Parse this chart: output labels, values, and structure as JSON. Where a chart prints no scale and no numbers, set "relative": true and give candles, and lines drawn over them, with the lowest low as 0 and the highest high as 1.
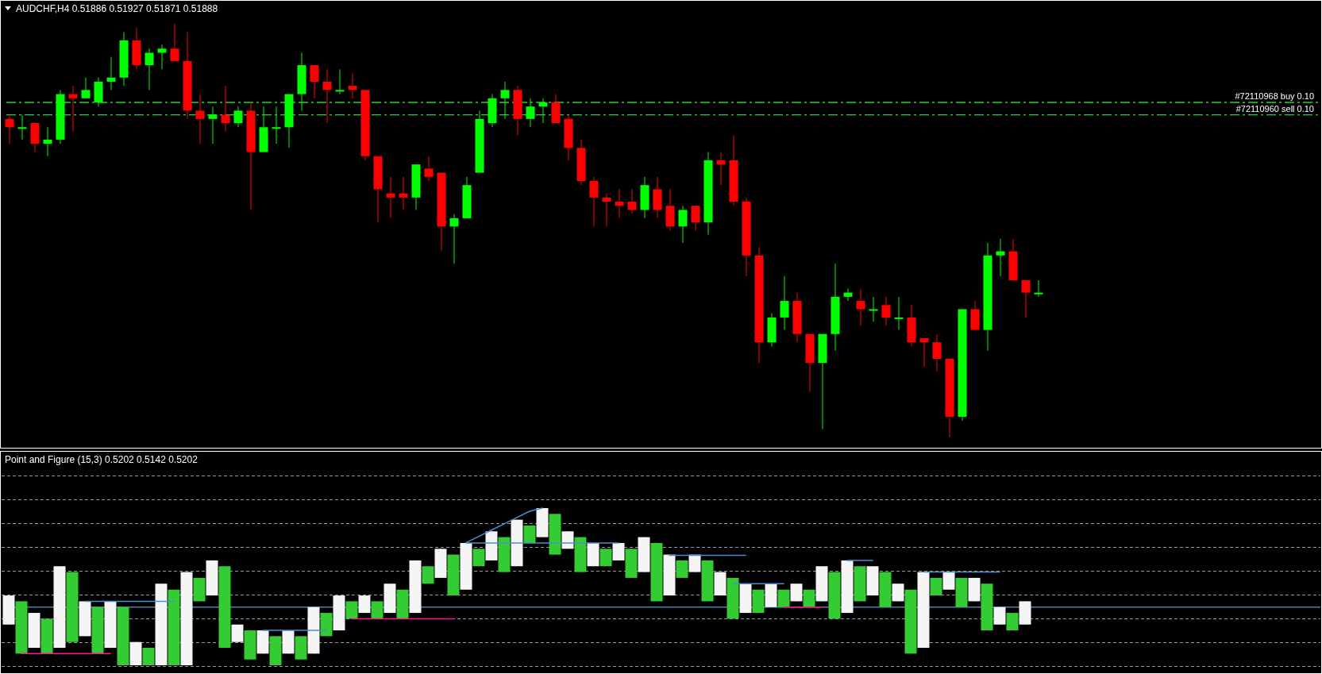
{
  "chart_data": [
    {
      "type": "candlestick",
      "title": "AUDCHF,H4  0.51886 0.51927 0.51871 0.51888",
      "relative": true,
      "categories": [
        null,
        null,
        null,
        null,
        null,
        null,
        null,
        null,
        null,
        null,
        null,
        null,
        null,
        null,
        null,
        null,
        null,
        null,
        null,
        null,
        null,
        null,
        null,
        null,
        null,
        null,
        null,
        null,
        null,
        null,
        null,
        null,
        null,
        null,
        null,
        null,
        null,
        null,
        null,
        null,
        null,
        null,
        null,
        null,
        null,
        null,
        null,
        null,
        null,
        null,
        null,
        null,
        null,
        null,
        null,
        null,
        null,
        null,
        null,
        null,
        null,
        null,
        null,
        null,
        null,
        null,
        null,
        null,
        null,
        null,
        null,
        null,
        null,
        null,
        null,
        null,
        null,
        null,
        null,
        null,
        null,
        null
      ],
      "ohlc": [
        [
          0.77,
          0.78,
          0.71,
          0.75
        ],
        [
          0.75,
          0.78,
          0.72,
          0.75
        ],
        [
          0.76,
          0.76,
          0.69,
          0.71
        ],
        [
          0.71,
          0.75,
          0.68,
          0.72
        ],
        [
          0.72,
          0.84,
          0.71,
          0.83
        ],
        [
          0.83,
          0.85,
          0.74,
          0.82
        ],
        [
          0.82,
          0.87,
          0.82,
          0.84
        ],
        [
          0.81,
          0.87,
          0.8,
          0.86
        ],
        [
          0.86,
          0.92,
          0.84,
          0.87
        ],
        [
          0.87,
          0.98,
          0.85,
          0.96
        ],
        [
          0.96,
          0.99,
          0.89,
          0.9
        ],
        [
          0.9,
          0.94,
          0.84,
          0.93
        ],
        [
          0.93,
          0.95,
          0.89,
          0.94
        ],
        [
          0.94,
          1,
          0.91,
          0.91
        ],
        [
          0.91,
          0.98,
          0.77,
          0.79
        ],
        [
          0.79,
          0.83,
          0.71,
          0.77
        ],
        [
          0.77,
          0.8,
          0.71,
          0.78
        ],
        [
          0.78,
          0.85,
          0.74,
          0.76
        ],
        [
          0.76,
          0.8,
          0.75,
          0.79
        ],
        [
          0.79,
          0.81,
          0.55,
          0.69
        ],
        [
          0.69,
          0.8,
          0.69,
          0.75
        ],
        [
          0.75,
          0.8,
          0.71,
          0.75
        ],
        [
          0.75,
          0.83,
          0.7,
          0.83
        ],
        [
          0.83,
          0.93,
          0.79,
          0.9
        ],
        [
          0.9,
          0.9,
          0.82,
          0.86
        ],
        [
          0.86,
          0.89,
          0.76,
          0.84
        ],
        [
          0.84,
          0.89,
          0.83,
          0.84
        ],
        [
          0.85,
          0.88,
          0.82,
          0.84
        ],
        [
          0.84,
          0.84,
          0.67,
          0.68
        ],
        [
          0.68,
          0.68,
          0.52,
          0.6
        ],
        [
          0.59,
          0.63,
          0.53,
          0.58
        ],
        [
          0.59,
          0.63,
          0.55,
          0.58
        ],
        [
          0.58,
          0.66,
          0.55,
          0.66
        ],
        [
          0.65,
          0.68,
          0.62,
          0.63
        ],
        [
          0.64,
          0.64,
          0.45,
          0.51
        ],
        [
          0.51,
          0.54,
          0.42,
          0.53
        ],
        [
          0.53,
          0.63,
          0.53,
          0.61
        ],
        [
          0.64,
          0.79,
          0.64,
          0.77
        ],
        [
          0.76,
          0.83,
          0.75,
          0.82
        ],
        [
          0.82,
          0.86,
          0.77,
          0.84
        ],
        [
          0.84,
          0.85,
          0.73,
          0.77
        ],
        [
          0.77,
          0.82,
          0.75,
          0.8
        ],
        [
          0.8,
          0.82,
          0.76,
          0.81
        ],
        [
          0.81,
          0.83,
          0.76,
          0.76
        ],
        [
          0.77,
          0.78,
          0.67,
          0.7
        ],
        [
          0.7,
          0.72,
          0.61,
          0.62
        ],
        [
          0.62,
          0.63,
          0.51,
          0.58
        ],
        [
          0.58,
          0.59,
          0.51,
          0.57
        ],
        [
          0.57,
          0.6,
          0.53,
          0.56
        ],
        [
          0.57,
          0.6,
          0.54,
          0.55
        ],
        [
          0.55,
          0.63,
          0.53,
          0.61
        ],
        [
          0.6,
          0.63,
          0.53,
          0.55
        ],
        [
          0.56,
          0.6,
          0.5,
          0.51
        ],
        [
          0.51,
          0.56,
          0.47,
          0.55
        ],
        [
          0.56,
          0.56,
          0.5,
          0.52
        ],
        [
          0.52,
          0.69,
          0.49,
          0.67
        ],
        [
          0.67,
          0.69,
          0.61,
          0.66
        ],
        [
          0.67,
          0.73,
          0.56,
          0.57
        ],
        [
          0.57,
          0.58,
          0.39,
          0.44
        ],
        [
          0.44,
          0.46,
          0.18,
          0.23
        ],
        [
          0.23,
          0.3,
          0.22,
          0.29
        ],
        [
          0.29,
          0.39,
          0.26,
          0.33
        ],
        [
          0.33,
          0.35,
          0.23,
          0.25
        ],
        [
          0.25,
          0.25,
          0.11,
          0.18
        ],
        [
          0.18,
          0.25,
          0.02,
          0.25
        ],
        [
          0.25,
          0.42,
          0.21,
          0.34
        ],
        [
          0.34,
          0.36,
          0.33,
          0.35
        ],
        [
          0.33,
          0.36,
          0.27,
          0.31
        ],
        [
          0.31,
          0.34,
          0.28,
          0.31
        ],
        [
          0.32,
          0.34,
          0.27,
          0.29
        ],
        [
          0.29,
          0.34,
          0.26,
          0.29
        ],
        [
          0.29,
          0.32,
          0.22,
          0.23
        ],
        [
          0.24,
          0.24,
          0.17,
          0.23
        ],
        [
          0.23,
          0.25,
          0.16,
          0.19
        ],
        [
          0.19,
          0.19,
          0,
          0.05
        ],
        [
          0.05,
          0.31,
          0.04,
          0.31
        ],
        [
          0.31,
          0.33,
          0.26,
          0.26
        ],
        [
          0.26,
          0.47,
          0.21,
          0.44
        ],
        [
          0.44,
          0.48,
          0.39,
          0.45
        ],
        [
          0.45,
          0.48,
          0.38,
          0.38
        ],
        [
          0.38,
          0.38,
          0.29,
          0.35
        ],
        [
          0.35,
          0.38,
          0.34,
          0.35
        ]
      ],
      "ref_lines": [
        {
          "axis": "y",
          "value": 0.81,
          "label": "#72110968 buy 0.10",
          "color": "#32cd32",
          "line_style": "dashed"
        },
        {
          "axis": "y",
          "value": 0.78,
          "label": "#72110960 sell 0.10",
          "color": "#32cd32",
          "line_style": "dashed"
        }
      ]
    },
    {
      "type": "candlestick",
      "title": "Point and Figure (15,3) 0.5202 0.5142 0.5202",
      "relative": true,
      "grid": true,
      "categories": [
        null,
        null,
        null,
        null,
        null,
        null,
        null,
        null,
        null,
        null,
        null,
        null,
        null,
        null,
        null,
        null,
        null,
        null,
        null,
        null,
        null,
        null,
        null,
        null,
        null,
        null,
        null,
        null,
        null,
        null,
        null,
        null,
        null,
        null,
        null,
        null,
        null,
        null,
        null,
        null,
        null,
        null,
        null,
        null,
        null,
        null,
        null,
        null,
        null,
        null,
        null,
        null,
        null,
        null,
        null,
        null,
        null,
        null,
        null,
        null,
        null,
        null,
        null,
        null,
        null,
        null,
        null,
        null,
        null,
        null,
        null,
        null,
        null,
        null,
        null,
        null,
        null,
        null,
        null,
        null,
        null
      ],
      "ohlc": [
        [
          0.259,
          0.444,
          0.259,
          0.444
        ],
        [
          0.407,
          0.407,
          0.074,
          0.074
        ],
        [
          0.111,
          0.333,
          0.111,
          0.333
        ],
        [
          0.296,
          0.296,
          0.074,
          0.074
        ],
        [
          0.111,
          0.63,
          0.111,
          0.63
        ],
        [
          0.593,
          0.593,
          0.148,
          0.148
        ],
        [
          0.185,
          0.407,
          0.185,
          0.407
        ],
        [
          0.37,
          0.37,
          0.074,
          0.074
        ],
        [
          0.111,
          0.407,
          0.111,
          0.407
        ],
        [
          0.37,
          0.37,
          0,
          0
        ],
        [
          0,
          0.148,
          0,
          0.148
        ],
        [
          0.111,
          0.111,
          0,
          0
        ],
        [
          0,
          0.519,
          0,
          0.519
        ],
        [
          0.481,
          0.481,
          0,
          0
        ],
        [
          0,
          0.593,
          0,
          0.593
        ],
        [
          0.556,
          0.556,
          0.407,
          0.407
        ],
        [
          0.444,
          0.667,
          0.444,
          0.667
        ],
        [
          0.63,
          0.63,
          0.111,
          0.111
        ],
        [
          0.148,
          0.259,
          0.148,
          0.259
        ],
        [
          0.222,
          0.222,
          0.037,
          0.037
        ],
        [
          0.074,
          0.222,
          0.074,
          0.222
        ],
        [
          0.185,
          0.185,
          0,
          0
        ],
        [
          0.074,
          0.222,
          0.074,
          0.222
        ],
        [
          0.185,
          0.185,
          0.037,
          0.037
        ],
        [
          0.074,
          0.37,
          0.074,
          0.37
        ],
        [
          0.333,
          0.333,
          0.185,
          0.185
        ],
        [
          0.222,
          0.444,
          0.222,
          0.444
        ],
        [
          0.407,
          0.407,
          0.296,
          0.296
        ],
        [
          0.333,
          0.444,
          0.333,
          0.444
        ],
        [
          0.407,
          0.407,
          0.296,
          0.296
        ],
        [
          0.333,
          0.519,
          0.333,
          0.519
        ],
        [
          0.481,
          0.481,
          0.296,
          0.296
        ],
        [
          0.333,
          0.667,
          0.333,
          0.667
        ],
        [
          0.63,
          0.63,
          0.519,
          0.519
        ],
        [
          0.556,
          0.741,
          0.556,
          0.741
        ],
        [
          0.704,
          0.704,
          0.444,
          0.444
        ],
        [
          0.481,
          0.778,
          0.481,
          0.778
        ],
        [
          0.741,
          0.741,
          0.63,
          0.63
        ],
        [
          0.667,
          0.852,
          0.667,
          0.852
        ],
        [
          0.815,
          0.815,
          0.593,
          0.593
        ],
        [
          0.63,
          0.926,
          0.63,
          0.926
        ],
        [
          0.889,
          0.889,
          0.778,
          0.778
        ],
        [
          0.815,
          1,
          0.815,
          1
        ],
        [
          0.963,
          0.963,
          0.704,
          0.704
        ],
        [
          0.741,
          0.852,
          0.741,
          0.852
        ],
        [
          0.815,
          0.815,
          0.593,
          0.593
        ],
        [
          0.63,
          0.778,
          0.63,
          0.778
        ],
        [
          0.741,
          0.741,
          0.63,
          0.63
        ],
        [
          0.667,
          0.778,
          0.667,
          0.778
        ],
        [
          0.741,
          0.741,
          0.556,
          0.556
        ],
        [
          0.593,
          0.815,
          0.593,
          0.815
        ],
        [
          0.778,
          0.778,
          0.407,
          0.407
        ],
        [
          0.444,
          0.704,
          0.444,
          0.704
        ],
        [
          0.667,
          0.667,
          0.556,
          0.556
        ],
        [
          0.593,
          0.704,
          0.593,
          0.704
        ],
        [
          0.667,
          0.667,
          0.407,
          0.407
        ],
        [
          0.444,
          0.593,
          0.444,
          0.593
        ],
        [
          0.556,
          0.556,
          0.296,
          0.296
        ],
        [
          0.333,
          0.519,
          0.333,
          0.519
        ],
        [
          0.481,
          0.481,
          0.333,
          0.333
        ],
        [
          0.37,
          0.519,
          0.37,
          0.519
        ],
        [
          0.481,
          0.481,
          0.37,
          0.37
        ],
        [
          0.407,
          0.519,
          0.407,
          0.519
        ],
        [
          0.481,
          0.481,
          0.37,
          0.37
        ],
        [
          0.407,
          0.63,
          0.407,
          0.63
        ],
        [
          0.593,
          0.593,
          0.296,
          0.296
        ],
        [
          0.333,
          0.667,
          0.333,
          0.667
        ],
        [
          0.63,
          0.63,
          0.407,
          0.407
        ],
        [
          0.444,
          0.63,
          0.444,
          0.63
        ],
        [
          0.593,
          0.593,
          0.37,
          0.37
        ],
        [
          0.407,
          0.519,
          0.407,
          0.519
        ],
        [
          0.481,
          0.481,
          0.074,
          0.074
        ],
        [
          0.111,
          0.593,
          0.111,
          0.593
        ],
        [
          0.556,
          0.556,
          0.444,
          0.444
        ],
        [
          0.481,
          0.593,
          0.481,
          0.593
        ],
        [
          0.556,
          0.556,
          0.37,
          0.37
        ],
        [
          0.407,
          0.556,
          0.407,
          0.556
        ],
        [
          0.519,
          0.519,
          0.222,
          0.222
        ],
        [
          0.259,
          0.37,
          0.259,
          0.37
        ],
        [
          0.333,
          0.333,
          0.222,
          0.222
        ],
        [
          0.259,
          0.407,
          0.259,
          0.407
        ]
      ],
      "colors": [
        "#f5f5f5",
        "#33cc33",
        "#f5f5f5",
        "#33cc33",
        "#f5f5f5",
        "#33cc33",
        "#f5f5f5",
        "#33cc33",
        "#f5f5f5",
        "#33cc33",
        "#f5f5f5",
        "#33cc33",
        "#f5f5f5",
        "#33cc33",
        "#f5f5f5",
        "#33cc33",
        "#f5f5f5",
        "#33cc33",
        "#f5f5f5",
        "#33cc33",
        "#f5f5f5",
        "#33cc33",
        "#f5f5f5",
        "#33cc33",
        "#f5f5f5",
        "#33cc33",
        "#f5f5f5",
        "#33cc33",
        "#f5f5f5",
        "#33cc33",
        "#f5f5f5",
        "#33cc33",
        "#f5f5f5",
        "#33cc33",
        "#f5f5f5",
        "#33cc33",
        "#f5f5f5",
        "#33cc33",
        "#f5f5f5",
        "#33cc33",
        "#f5f5f5",
        "#33cc33",
        "#f5f5f5",
        "#33cc33",
        "#f5f5f5",
        "#33cc33",
        "#f5f5f5",
        "#33cc33",
        "#f5f5f5",
        "#33cc33",
        "#f5f5f5",
        "#33cc33",
        "#f5f5f5",
        "#33cc33",
        "#f5f5f5",
        "#33cc33",
        "#f5f5f5",
        "#33cc33",
        "#f5f5f5",
        "#33cc33",
        "#f5f5f5",
        "#33cc33",
        "#f5f5f5",
        "#33cc33",
        "#f5f5f5",
        "#33cc33",
        "#f5f5f5",
        "#33cc33",
        "#f5f5f5",
        "#33cc33",
        "#f5f5f5",
        "#33cc33",
        "#f5f5f5",
        "#33cc33",
        "#f5f5f5",
        "#33cc33",
        "#f5f5f5",
        "#33cc33",
        "#f5f5f5",
        "#33cc33",
        "#f5f5f5"
      ],
      "ref_lines": [
        {
          "axis": "y",
          "value": 0.37,
          "color": "#4682b4"
        }
      ],
      "series": [
        {
          "type": "line",
          "color": "#4a8fd0",
          "values": [
            null,
            null,
            null,
            null,
            null,
            null,
            0.407,
            0.407,
            0.407,
            0.407,
            0.407,
            0.407,
            0.407,
            0.407,
            null,
            null,
            null,
            null,
            null,
            null,
            0.222,
            0.222,
            0.222,
            0.222,
            0.222,
            0.222,
            null,
            null,
            null,
            null,
            null,
            null,
            null,
            null,
            null,
            null,
            0.778,
            0.778,
            0.778,
            0.778,
            0.778,
            0.778,
            0.778,
            0.778,
            0.778,
            0.778,
            0.778,
            0.778,
            0.778,
            null,
            null,
            null,
            0.7,
            0.7,
            0.7,
            0.7,
            0.7,
            0.7,
            0.7,
            null,
            null,
            null,
            null,
            null,
            null,
            null,
            0.667,
            0.667,
            0.667,
            null,
            null,
            null,
            0.593,
            0.593,
            0.593,
            0.593,
            0.593,
            0.593,
            0.593,
            null,
            null
          ]
        },
        {
          "type": "line",
          "color": "#4a8fd0",
          "values": [
            null,
            null,
            null,
            null,
            null,
            null,
            null,
            null,
            null,
            null,
            null,
            null,
            null,
            null,
            null,
            null,
            null,
            null,
            null,
            null,
            null,
            null,
            null,
            null,
            null,
            null,
            null,
            null,
            null,
            null,
            null,
            null,
            null,
            null,
            null,
            null,
            0.78,
            0.82,
            0.86,
            0.9,
            0.94,
            0.98,
            1,
            null,
            null,
            null,
            null,
            null,
            null,
            null,
            null,
            null,
            null,
            null,
            null,
            null,
            null,
            0.519,
            0.519,
            0.519,
            0.519,
            0.519,
            null,
            null,
            null,
            null,
            null,
            null,
            null,
            null,
            null,
            null,
            null,
            null,
            null,
            null,
            null,
            null,
            null,
            null,
            null
          ]
        },
        {
          "type": "line",
          "color": "#ff1493",
          "values": [
            null,
            0.074,
            0.074,
            0.074,
            0.074,
            0.074,
            0.074,
            0.074,
            0.074,
            null,
            null,
            null,
            null,
            null,
            null,
            null,
            null,
            null,
            null,
            null,
            null,
            null,
            null,
            null,
            null,
            null,
            null,
            0.296,
            0.296,
            0.296,
            0.296,
            0.296,
            0.296,
            0.296,
            0.296,
            0.296,
            null,
            null,
            null,
            null,
            null,
            null,
            null,
            null,
            null,
            null,
            null,
            null,
            null,
            null,
            null,
            null,
            null,
            null,
            null,
            null,
            null,
            null,
            null,
            null,
            null,
            0.37,
            0.37,
            0.37,
            0.37,
            null,
            null,
            null,
            null,
            null,
            null,
            null,
            null,
            null,
            null,
            null,
            null,
            null,
            null,
            null,
            null
          ]
        }
      ]
    }
  ]
}
